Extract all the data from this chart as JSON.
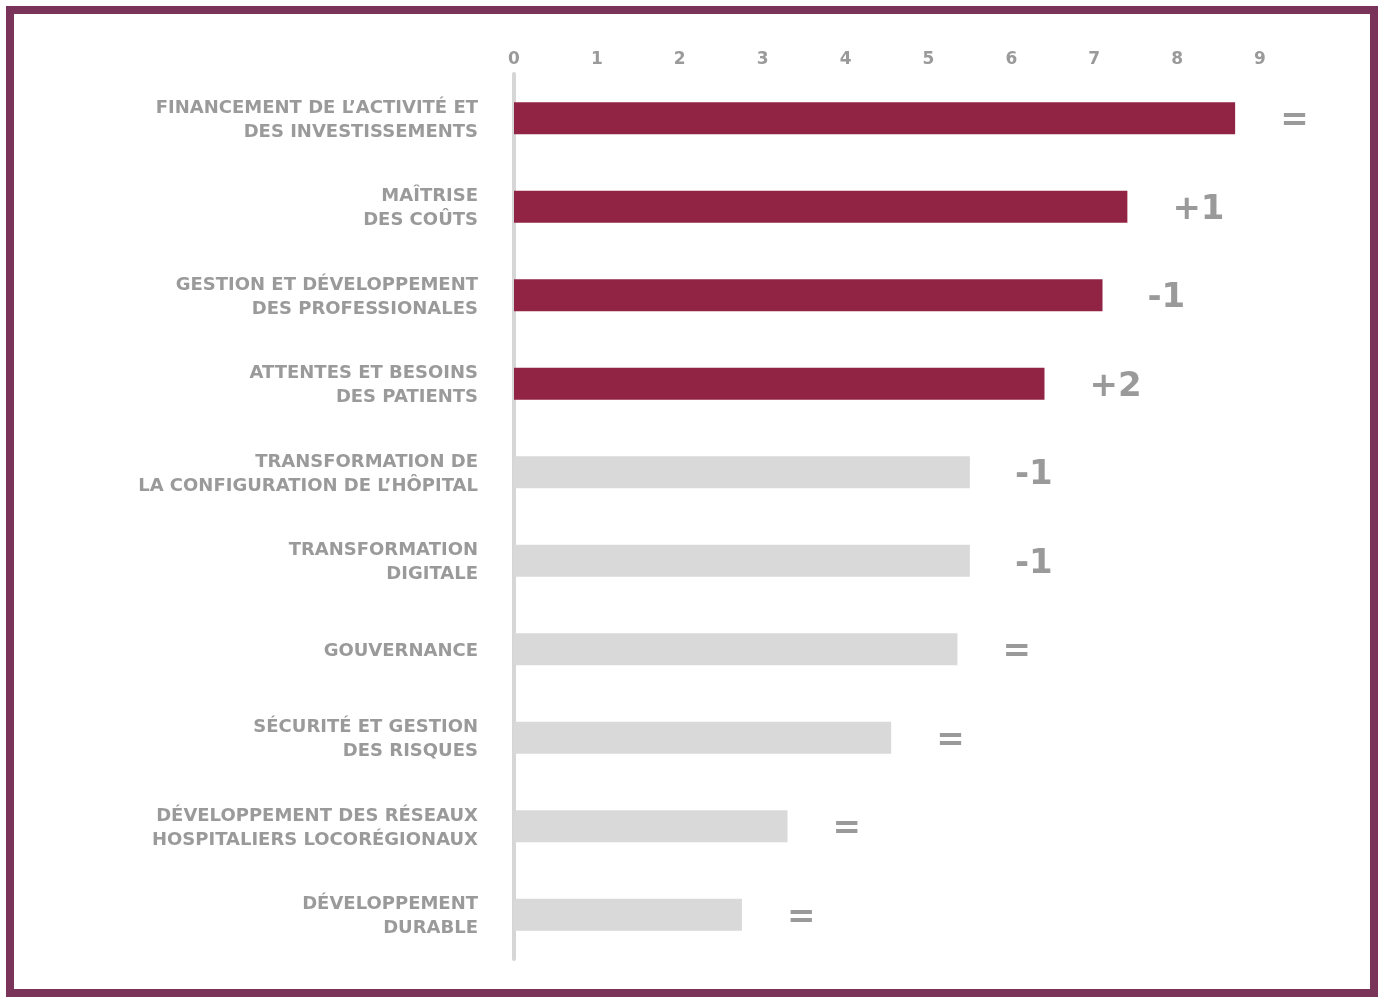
{
  "chart_data": {
    "type": "bar",
    "orientation": "horizontal",
    "categories": [
      "FINANCEMENT DE L’ACTIVITÉ ET\nDES INVESTISSEMENTS",
      "MAÎTRISE\nDES COÛTS",
      "GESTION ET DÉVELOPPEMENT\nDES PROFESSIONALES",
      "ATTENTES ET BESOINS\nDES PATIENTS",
      "TRANSFORMATION DE\nLA CONFIGURATION DE L’HÔPITAL",
      "TRANSFORMATION\nDIGITALE",
      "GOUVERNANCE",
      "SÉCURITÉ ET GESTION\nDES RISQUES",
      "DÉVELOPPEMENT DES RÉSEAUX\nHOSPITALIERS LOCORÉGIONAUX",
      "DÉVELOPPEMENT\nDURABLE"
    ],
    "values": [
      8.7,
      7.4,
      7.1,
      6.4,
      5.5,
      5.5,
      5.35,
      4.55,
      3.3,
      2.75
    ],
    "colors": [
      "#912444",
      "#912444",
      "#912444",
      "#912444",
      "#d9d9d9",
      "#d9d9d9",
      "#d9d9d9",
      "#d9d9d9",
      "#d9d9d9",
      "#d9d9d9"
    ],
    "annotations": [
      {
        "text": "=",
        "x": 8.7,
        "y": "FINANCEMENT DE L’ACTIVITÉ ET\nDES INVESTISSEMENTS"
      },
      {
        "text": "+1",
        "x": 7.4,
        "y": "MAÎTRISE\nDES COÛTS"
      },
      {
        "text": "-1",
        "x": 7.1,
        "y": "GESTION ET DÉVELOPPEMENT\nDES PROFESSIONALES"
      },
      {
        "text": "+2",
        "x": 6.4,
        "y": "ATTENTES ET BESOINS\nDES PATIENTS"
      },
      {
        "text": "-1",
        "x": 5.5,
        "y": "TRANSFORMATION DE\nLA CONFIGURATION DE L’HÔPITAL"
      },
      {
        "text": "-1",
        "x": 5.5,
        "y": "TRANSFORMATION\nDIGITALE"
      },
      {
        "text": "=",
        "x": 5.35,
        "y": "GOUVERNANCE"
      },
      {
        "text": "=",
        "x": 4.55,
        "y": "SÉCURITÉ ET GESTION\nDES RISQUES"
      },
      {
        "text": "=",
        "x": 3.3,
        "y": "DÉVELOPPEMENT DES RÉSEAUX\nHOSPITALIERS LOCORÉGIONAUX"
      },
      {
        "text": "=",
        "x": 2.75,
        "y": "DÉVELOPPEMENT\nDURABLE"
      }
    ],
    "xlim": [
      0,
      9
    ],
    "xticks": [
      0,
      1,
      2,
      3,
      4,
      5,
      6,
      7,
      8,
      9
    ],
    "grid": false
  }
}
